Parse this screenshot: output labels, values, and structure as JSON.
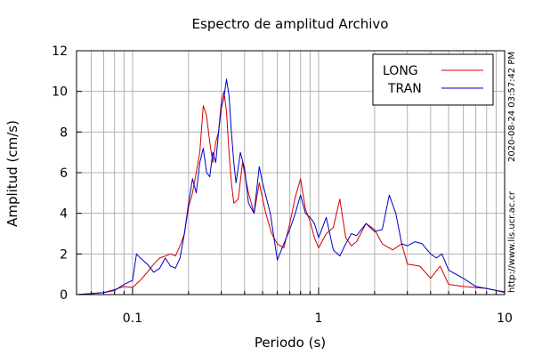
{
  "chart_data": {
    "type": "line",
    "title": "Espectro de amplitud Archivo",
    "xlabel": "Periodo (s)",
    "ylabel": "Amplitud (cm/s)",
    "xscale": "log",
    "xlim": [
      0.05,
      10
    ],
    "ylim": [
      0,
      12
    ],
    "grid": true,
    "legend_position": "top-right",
    "x_tick_labels": [
      "0.1",
      "1",
      "10"
    ],
    "x_tick_values": [
      0.1,
      1,
      10
    ],
    "y_tick_labels": [
      "0",
      "2",
      "4",
      "6",
      "8",
      "10",
      "12"
    ],
    "y_tick_values": [
      0,
      2,
      4,
      6,
      8,
      10,
      12
    ],
    "side_texts": {
      "timestamp": "2020-08-24 03:57:42 PM",
      "website": "http://www.lis.ucr.ac.cr"
    },
    "series": [
      {
        "name": "LONG",
        "color": "#d40000",
        "points": [
          [
            0.05,
            0.0
          ],
          [
            0.06,
            0.05
          ],
          [
            0.07,
            0.1
          ],
          [
            0.08,
            0.25
          ],
          [
            0.09,
            0.4
          ],
          [
            0.1,
            0.35
          ],
          [
            0.11,
            0.7
          ],
          [
            0.12,
            1.1
          ],
          [
            0.13,
            1.5
          ],
          [
            0.14,
            1.8
          ],
          [
            0.15,
            1.9
          ],
          [
            0.16,
            2.0
          ],
          [
            0.17,
            1.9
          ],
          [
            0.18,
            2.4
          ],
          [
            0.19,
            3.0
          ],
          [
            0.2,
            4.3
          ],
          [
            0.21,
            5.0
          ],
          [
            0.22,
            6.0
          ],
          [
            0.23,
            7.0
          ],
          [
            0.24,
            9.3
          ],
          [
            0.25,
            8.8
          ],
          [
            0.26,
            7.5
          ],
          [
            0.27,
            6.5
          ],
          [
            0.28,
            7.5
          ],
          [
            0.29,
            8.0
          ],
          [
            0.3,
            9.5
          ],
          [
            0.31,
            10.0
          ],
          [
            0.32,
            9.0
          ],
          [
            0.33,
            7.0
          ],
          [
            0.34,
            5.5
          ],
          [
            0.35,
            4.5
          ],
          [
            0.37,
            4.7
          ],
          [
            0.39,
            6.5
          ],
          [
            0.42,
            5.0
          ],
          [
            0.45,
            4.0
          ],
          [
            0.48,
            5.5
          ],
          [
            0.52,
            4.0
          ],
          [
            0.56,
            3.0
          ],
          [
            0.6,
            2.5
          ],
          [
            0.65,
            2.3
          ],
          [
            0.7,
            3.5
          ],
          [
            0.75,
            4.8
          ],
          [
            0.8,
            5.7
          ],
          [
            0.85,
            4.2
          ],
          [
            0.9,
            3.6
          ],
          [
            0.95,
            2.8
          ],
          [
            1.0,
            2.3
          ],
          [
            1.1,
            3.0
          ],
          [
            1.2,
            3.3
          ],
          [
            1.3,
            4.7
          ],
          [
            1.4,
            2.8
          ],
          [
            1.5,
            2.4
          ],
          [
            1.6,
            2.6
          ],
          [
            1.8,
            3.5
          ],
          [
            2.0,
            3.2
          ],
          [
            2.2,
            2.5
          ],
          [
            2.5,
            2.2
          ],
          [
            2.8,
            2.5
          ],
          [
            3.0,
            1.5
          ],
          [
            3.5,
            1.4
          ],
          [
            4.0,
            0.8
          ],
          [
            4.5,
            1.4
          ],
          [
            5.0,
            0.5
          ],
          [
            6.0,
            0.4
          ],
          [
            7.0,
            0.35
          ],
          [
            8.0,
            0.3
          ],
          [
            9.0,
            0.2
          ],
          [
            10.0,
            0.15
          ]
        ]
      },
      {
        "name": "TRAN",
        "color": "#0000c8",
        "points": [
          [
            0.05,
            0.0
          ],
          [
            0.06,
            0.05
          ],
          [
            0.07,
            0.1
          ],
          [
            0.08,
            0.2
          ],
          [
            0.09,
            0.5
          ],
          [
            0.1,
            0.7
          ],
          [
            0.105,
            2.0
          ],
          [
            0.11,
            1.8
          ],
          [
            0.12,
            1.5
          ],
          [
            0.13,
            1.1
          ],
          [
            0.14,
            1.3
          ],
          [
            0.15,
            1.8
          ],
          [
            0.16,
            1.4
          ],
          [
            0.17,
            1.3
          ],
          [
            0.18,
            1.8
          ],
          [
            0.19,
            3.0
          ],
          [
            0.2,
            4.5
          ],
          [
            0.21,
            5.7
          ],
          [
            0.22,
            5.0
          ],
          [
            0.23,
            6.5
          ],
          [
            0.24,
            7.2
          ],
          [
            0.25,
            6.0
          ],
          [
            0.26,
            5.8
          ],
          [
            0.27,
            7.0
          ],
          [
            0.28,
            6.5
          ],
          [
            0.29,
            8.0
          ],
          [
            0.3,
            9.2
          ],
          [
            0.31,
            9.7
          ],
          [
            0.32,
            10.6
          ],
          [
            0.33,
            9.8
          ],
          [
            0.34,
            8.0
          ],
          [
            0.35,
            6.5
          ],
          [
            0.36,
            5.5
          ],
          [
            0.38,
            7.0
          ],
          [
            0.4,
            6.2
          ],
          [
            0.42,
            4.5
          ],
          [
            0.45,
            4.0
          ],
          [
            0.48,
            6.3
          ],
          [
            0.5,
            5.5
          ],
          [
            0.55,
            4.0
          ],
          [
            0.6,
            1.7
          ],
          [
            0.65,
            2.5
          ],
          [
            0.7,
            3.2
          ],
          [
            0.75,
            4.0
          ],
          [
            0.8,
            4.9
          ],
          [
            0.85,
            4.0
          ],
          [
            0.9,
            3.8
          ],
          [
            0.95,
            3.5
          ],
          [
            1.0,
            2.8
          ],
          [
            1.1,
            3.8
          ],
          [
            1.2,
            2.2
          ],
          [
            1.3,
            1.9
          ],
          [
            1.4,
            2.5
          ],
          [
            1.5,
            3.0
          ],
          [
            1.6,
            2.9
          ],
          [
            1.8,
            3.5
          ],
          [
            2.0,
            3.1
          ],
          [
            2.2,
            3.2
          ],
          [
            2.4,
            4.9
          ],
          [
            2.6,
            4.0
          ],
          [
            2.8,
            2.5
          ],
          [
            3.0,
            2.4
          ],
          [
            3.3,
            2.6
          ],
          [
            3.6,
            2.5
          ],
          [
            4.0,
            2.0
          ],
          [
            4.3,
            1.8
          ],
          [
            4.6,
            2.0
          ],
          [
            5.0,
            1.2
          ],
          [
            6.0,
            0.8
          ],
          [
            7.0,
            0.4
          ],
          [
            8.0,
            0.3
          ],
          [
            9.0,
            0.2
          ],
          [
            10.0,
            0.1
          ]
        ]
      }
    ]
  }
}
